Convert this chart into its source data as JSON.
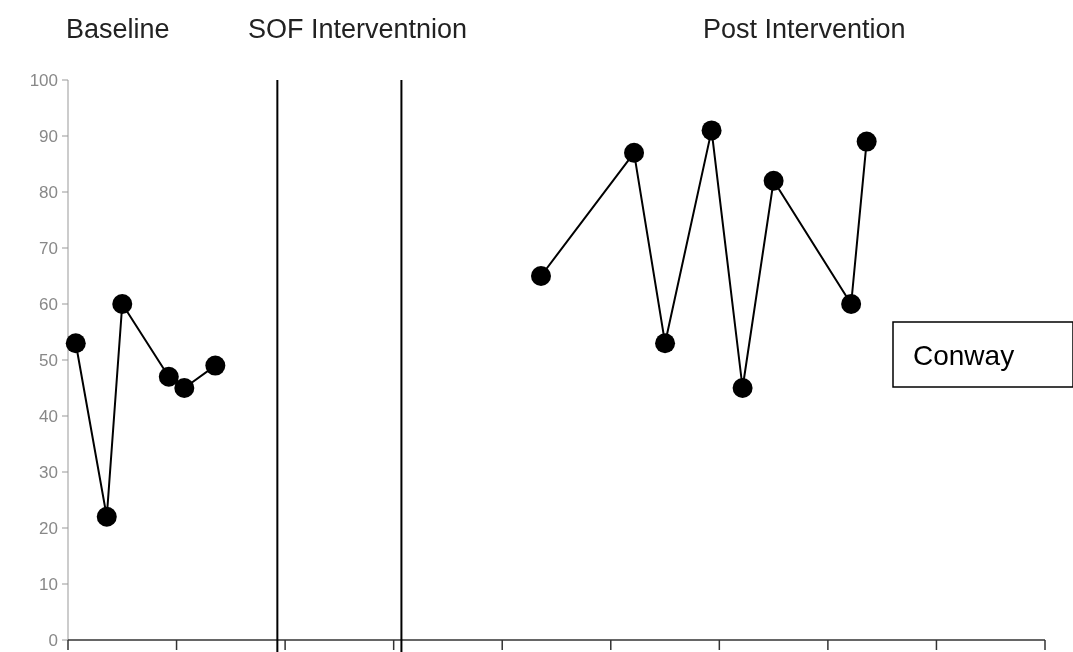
{
  "chart_data": {
    "type": "line",
    "annotations": [
      "Baseline",
      "SOF Interventnion",
      "Post Intervention",
      "Conway"
    ],
    "categories": [
      null,
      null,
      null,
      null,
      null,
      null,
      null,
      null,
      null,
      null,
      null,
      null,
      null,
      null,
      null,
      null,
      null,
      null,
      null,
      null,
      null,
      null,
      null,
      null,
      null,
      null,
      null,
      null,
      null,
      null,
      null,
      null,
      null,
      null,
      null,
      null,
      null,
      null,
      null,
      null,
      null,
      null,
      null,
      null,
      null,
      null,
      null,
      null,
      null,
      null,
      null,
      null,
      null,
      null,
      null,
      null,
      null,
      null,
      null,
      null,
      null,
      null,
      null
    ],
    "ylim": [
      0,
      100
    ],
    "yticks": [
      0,
      10,
      20,
      30,
      40,
      50,
      60,
      70,
      80,
      90,
      100
    ],
    "tick_labels": "y",
    "marker": "circle",
    "line_style": "solid",
    "series": [
      {
        "color": "#000000",
        "values": [
          53,
          null,
          22,
          60,
          null,
          null,
          47,
          45,
          null,
          49,
          null,
          null,
          null,
          null,
          null,
          null,
          null,
          null,
          null,
          null,
          null,
          null,
          null,
          null,
          null,
          null,
          null,
          null,
          null,
          null,
          null,
          null,
          null,
          null,
          null,
          null,
          null,
          null,
          null,
          null,
          null,
          null,
          null,
          null,
          null,
          null,
          null,
          null,
          null,
          null,
          null,
          null,
          null,
          null,
          null,
          null,
          null,
          null,
          null,
          null,
          null,
          null,
          null
        ]
      },
      {
        "color": "#000000",
        "values": [
          null,
          null,
          null,
          null,
          null,
          null,
          null,
          null,
          null,
          null,
          null,
          null,
          null,
          null,
          null,
          null,
          null,
          null,
          null,
          null,
          null,
          null,
          null,
          null,
          null,
          null,
          null,
          null,
          null,
          null,
          65,
          null,
          null,
          null,
          null,
          null,
          87,
          null,
          53,
          null,
          null,
          91,
          null,
          45,
          null,
          82,
          null,
          null,
          null,
          null,
          60,
          89,
          null,
          null,
          null,
          null,
          null,
          null,
          null,
          null,
          null,
          null,
          null
        ]
      }
    ]
  }
}
